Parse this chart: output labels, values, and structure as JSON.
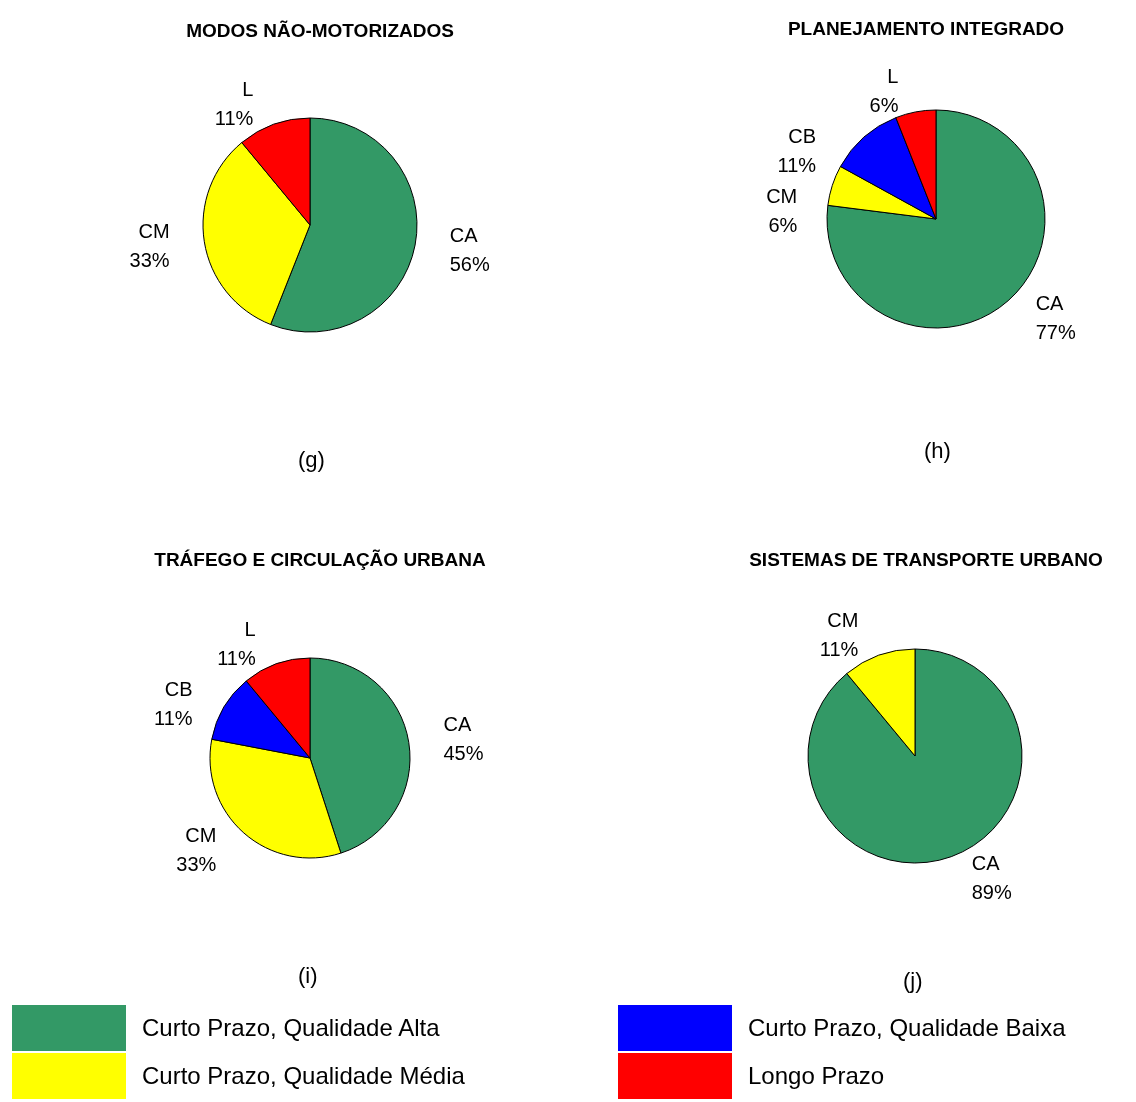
{
  "chart_data": [
    {
      "type": "pie",
      "title": "MODOS NÃO-MOTORIZADOS",
      "categories": [
        "CA",
        "CM",
        "L"
      ],
      "values": [
        56,
        33,
        11
      ],
      "value_labels": [
        "56%",
        "33%",
        "11%"
      ],
      "colors": [
        "#339966",
        "#ffff00",
        "#ff0000"
      ],
      "annotations": [
        "(g)"
      ]
    },
    {
      "type": "pie",
      "title": "PLANEJAMENTO INTEGRADO",
      "categories": [
        "CA",
        "CM",
        "CB",
        "L"
      ],
      "values": [
        77,
        6,
        11,
        6
      ],
      "value_labels": [
        "77%",
        "6%",
        "11%",
        "6%"
      ],
      "colors": [
        "#339966",
        "#ffff00",
        "#0000ff",
        "#ff0000"
      ],
      "annotations": [
        "(h)"
      ]
    },
    {
      "type": "pie",
      "title": "TRÁFEGO E CIRCULAÇÃO URBANA",
      "categories": [
        "CA",
        "CM",
        "CB",
        "L"
      ],
      "values": [
        45,
        33,
        11,
        11
      ],
      "value_labels": [
        "45%",
        "33%",
        "11%",
        "11%"
      ],
      "colors": [
        "#339966",
        "#ffff00",
        "#0000ff",
        "#ff0000"
      ],
      "annotations": [
        "(i)"
      ]
    },
    {
      "type": "pie",
      "title": "SISTEMAS DE TRANSPORTE URBANO",
      "categories": [
        "CA",
        "CM"
      ],
      "values": [
        89,
        11
      ],
      "value_labels": [
        "89%",
        "11%"
      ],
      "colors": [
        "#339966",
        "#ffff00"
      ],
      "annotations": [
        "(j)"
      ]
    },
    {
      "type": "other",
      "categories": [
        "Curto Prazo, Qualidade Alta",
        "Curto Prazo, Qualidade Baixa",
        "Curto Prazo, Qualidade Média",
        "Longo Prazo"
      ],
      "colors": [
        "#339966",
        "#0000ff",
        "#ffff00",
        "#ff0000"
      ]
    }
  ]
}
